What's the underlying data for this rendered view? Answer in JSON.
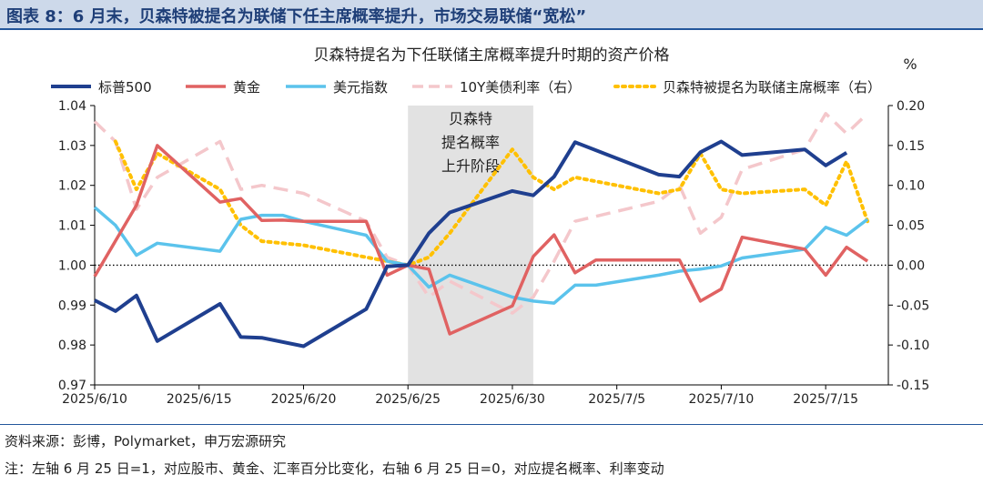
{
  "header": {
    "title": "图表 8：6 月末，贝森特被提名为联储下任主席概率提升，市场交易联储“宽松”"
  },
  "footer": {
    "source": "资料来源：彭博，Polymarket，申万宏源研究",
    "note": "注：左轴 6 月 25 日=1，对应股市、黄金、汇率百分比变化，右轴 6 月 25 日=0，对应提名概率、利率变动"
  },
  "chart_data": {
    "type": "line",
    "title": "贝森特提名为下任联储主席概率提升时期的资产价格",
    "right_axis_unit": "%",
    "x_ticks": [
      "2025/6/10",
      "2025/6/15",
      "2025/6/20",
      "2025/6/25",
      "2025/6/30",
      "2025/7/5",
      "2025/7/10",
      "2025/7/15"
    ],
    "x_range": [
      "2025/6/10",
      "2025/7/18"
    ],
    "y_left": {
      "min": 0.97,
      "max": 1.04,
      "ticks": [
        "0.97",
        "0.98",
        "0.99",
        "1.00",
        "1.01",
        "1.02",
        "1.03",
        "1.04"
      ]
    },
    "y_right": {
      "min": -0.15,
      "max": 0.2,
      "ticks": [
        "-0.15",
        "-0.10",
        "-0.05",
        "0.00",
        "0.05",
        "0.10",
        "0.15",
        "0.20"
      ]
    },
    "shaded_region": {
      "from": "2025/6/25",
      "to": "2025/7/1",
      "label_lines": [
        "贝森特",
        "提名概率",
        "上升阶段"
      ]
    },
    "baseline": 1.0,
    "legend_position": "top",
    "series": [
      {
        "name": "标普500",
        "axis": "left",
        "color": "#1f3f8f",
        "style": "solid",
        "width": 4,
        "points": [
          [
            "2025/6/10",
            0.9912
          ],
          [
            "2025/6/11",
            0.9885
          ],
          [
            "2025/6/12",
            0.9924
          ],
          [
            "2025/6/13",
            0.981
          ],
          [
            "2025/6/16",
            0.9903
          ],
          [
            "2025/6/17",
            0.982
          ],
          [
            "2025/6/18",
            0.9818
          ],
          [
            "2025/6/20",
            0.9797
          ],
          [
            "2025/6/23",
            0.989
          ],
          [
            "2025/6/24",
            0.9997
          ],
          [
            "2025/6/25",
            1.0
          ],
          [
            "2025/6/26",
            1.008
          ],
          [
            "2025/6/27",
            1.0132
          ],
          [
            "2025/6/30",
            1.0186
          ],
          [
            "2025/7/1",
            1.0175
          ],
          [
            "2025/7/2",
            1.0222
          ],
          [
            "2025/7/3",
            1.0308
          ],
          [
            "2025/7/7",
            1.0227
          ],
          [
            "2025/7/8",
            1.0222
          ],
          [
            "2025/7/9",
            1.0283
          ],
          [
            "2025/7/10",
            1.031
          ],
          [
            "2025/7/11",
            1.0276
          ],
          [
            "2025/7/14",
            1.029
          ],
          [
            "2025/7/15",
            1.025
          ],
          [
            "2025/7/16",
            1.0282
          ]
        ]
      },
      {
        "name": "黄金",
        "axis": "left",
        "color": "#e06262",
        "style": "solid",
        "width": 3.5,
        "points": [
          [
            "2025/6/10",
            0.9972
          ],
          [
            "2025/6/12",
            1.015
          ],
          [
            "2025/6/13",
            1.03
          ],
          [
            "2025/6/16",
            1.0158
          ],
          [
            "2025/6/17",
            1.0167
          ],
          [
            "2025/6/18",
            1.0112
          ],
          [
            "2025/6/19",
            1.0113
          ],
          [
            "2025/6/20",
            1.011
          ],
          [
            "2025/6/23",
            1.011
          ],
          [
            "2025/6/24",
            0.9975
          ],
          [
            "2025/6/25",
            1.0
          ],
          [
            "2025/6/26",
            0.999
          ],
          [
            "2025/6/27",
            0.9828
          ],
          [
            "2025/6/30",
            0.9898
          ],
          [
            "2025/7/1",
            1.0022
          ],
          [
            "2025/7/2",
            1.0076
          ],
          [
            "2025/7/3",
            0.9981
          ],
          [
            "2025/7/4",
            1.0013
          ],
          [
            "2025/7/7",
            1.0013
          ],
          [
            "2025/7/8",
            1.0013
          ],
          [
            "2025/7/9",
            0.991
          ],
          [
            "2025/7/10",
            0.994
          ],
          [
            "2025/7/11",
            1.007
          ],
          [
            "2025/7/14",
            1.004
          ],
          [
            "2025/7/15",
            0.9975
          ],
          [
            "2025/7/16",
            1.0045
          ],
          [
            "2025/7/17",
            1.001
          ]
        ]
      },
      {
        "name": "美元指数",
        "axis": "left",
        "color": "#5bc3ec",
        "style": "solid",
        "width": 3.5,
        "points": [
          [
            "2025/6/10",
            1.0145
          ],
          [
            "2025/6/11",
            1.01
          ],
          [
            "2025/6/12",
            1.0025
          ],
          [
            "2025/6/13",
            1.0055
          ],
          [
            "2025/6/16",
            1.0035
          ],
          [
            "2025/6/17",
            1.0115
          ],
          [
            "2025/6/18",
            1.0125
          ],
          [
            "2025/6/19",
            1.0125
          ],
          [
            "2025/6/20",
            1.011
          ],
          [
            "2025/6/23",
            1.0075
          ],
          [
            "2025/6/24",
            1.001
          ],
          [
            "2025/6/25",
            1.0
          ],
          [
            "2025/6/26",
            0.9945
          ],
          [
            "2025/6/27",
            0.9975
          ],
          [
            "2025/6/30",
            0.992
          ],
          [
            "2025/7/1",
            0.991
          ],
          [
            "2025/7/2",
            0.9905
          ],
          [
            "2025/7/3",
            0.995
          ],
          [
            "2025/7/4",
            0.995
          ],
          [
            "2025/7/7",
            0.9975
          ],
          [
            "2025/7/8",
            0.9985
          ],
          [
            "2025/7/9",
            0.999
          ],
          [
            "2025/7/10",
            0.9998
          ],
          [
            "2025/7/11",
            1.0018
          ],
          [
            "2025/7/14",
            1.004
          ],
          [
            "2025/7/15",
            1.0095
          ],
          [
            "2025/7/16",
            1.0075
          ],
          [
            "2025/7/17",
            1.0115
          ]
        ]
      },
      {
        "name": "10Y美债利率（右）",
        "axis": "right",
        "color": "#f4c7cb",
        "style": "dashed",
        "width": 3.5,
        "points": [
          [
            "2025/6/10",
            0.18
          ],
          [
            "2025/6/11",
            0.155
          ],
          [
            "2025/6/12",
            0.07
          ],
          [
            "2025/6/13",
            0.11
          ],
          [
            "2025/6/16",
            0.155
          ],
          [
            "2025/6/17",
            0.095
          ],
          [
            "2025/6/18",
            0.1
          ],
          [
            "2025/6/20",
            0.09
          ],
          [
            "2025/6/23",
            0.055
          ],
          [
            "2025/6/24",
            0.01
          ],
          [
            "2025/6/25",
            0.0
          ],
          [
            "2025/6/26",
            -0.04
          ],
          [
            "2025/6/27",
            -0.02
          ],
          [
            "2025/6/30",
            -0.06
          ],
          [
            "2025/7/1",
            -0.04
          ],
          [
            "2025/7/2",
            0.005
          ],
          [
            "2025/7/3",
            0.055
          ],
          [
            "2025/7/7",
            0.08
          ],
          [
            "2025/7/8",
            0.1
          ],
          [
            "2025/7/9",
            0.04
          ],
          [
            "2025/7/10",
            0.06
          ],
          [
            "2025/7/11",
            0.12
          ],
          [
            "2025/7/14",
            0.145
          ],
          [
            "2025/7/15",
            0.19
          ],
          [
            "2025/7/16",
            0.165
          ],
          [
            "2025/7/17",
            0.19
          ]
        ]
      },
      {
        "name": "贝森特被提名为联储主席概率（右）",
        "axis": "right",
        "color": "#ffc000",
        "style": "dotted",
        "width": 4,
        "points": [
          [
            "2025/6/11",
            0.155
          ],
          [
            "2025/6/12",
            0.095
          ],
          [
            "2025/6/13",
            0.14
          ],
          [
            "2025/6/16",
            0.095
          ],
          [
            "2025/6/17",
            0.05
          ],
          [
            "2025/6/18",
            0.03
          ],
          [
            "2025/6/20",
            0.025
          ],
          [
            "2025/6/23",
            0.01
          ],
          [
            "2025/6/24",
            0.005
          ],
          [
            "2025/6/25",
            0.0
          ],
          [
            "2025/6/26",
            0.01
          ],
          [
            "2025/6/27",
            0.04
          ],
          [
            "2025/6/30",
            0.145
          ],
          [
            "2025/7/1",
            0.11
          ],
          [
            "2025/7/2",
            0.095
          ],
          [
            "2025/7/3",
            0.11
          ],
          [
            "2025/7/7",
            0.09
          ],
          [
            "2025/7/8",
            0.095
          ],
          [
            "2025/7/9",
            0.14
          ],
          [
            "2025/7/10",
            0.095
          ],
          [
            "2025/7/11",
            0.09
          ],
          [
            "2025/7/14",
            0.095
          ],
          [
            "2025/7/15",
            0.075
          ],
          [
            "2025/7/16",
            0.13
          ],
          [
            "2025/7/17",
            0.055
          ]
        ]
      }
    ]
  }
}
